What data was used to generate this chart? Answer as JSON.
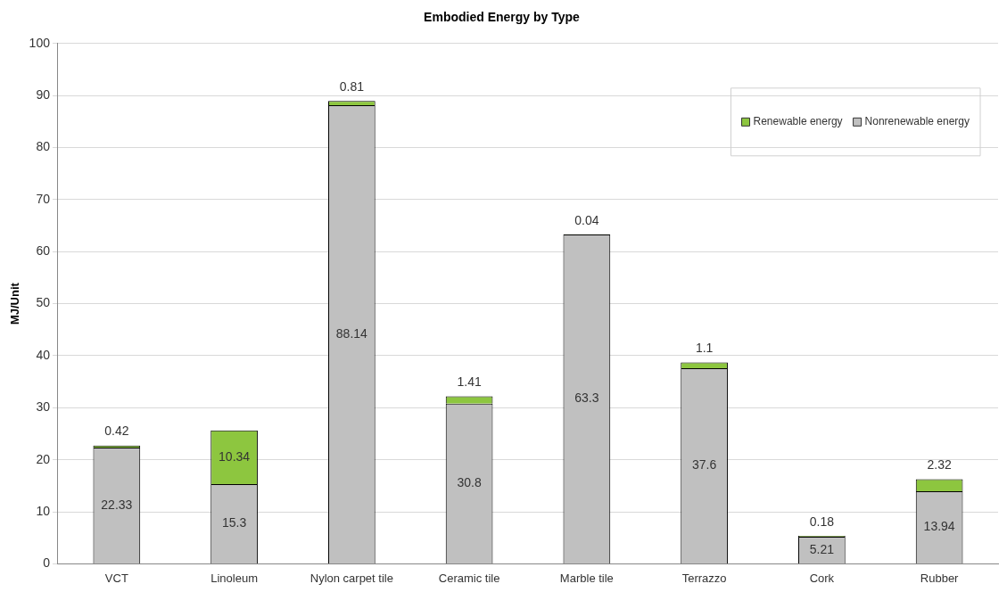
{
  "chart_data": {
    "type": "bar",
    "title": "Embodied Energy by Type",
    "ylabel": "MJ/Unit",
    "stacked": true,
    "categories": [
      "VCT",
      "Linoleum",
      "Nylon carpet tile",
      "Ceramic tile",
      "Marble tile",
      "Terrazzo",
      "Cork",
      "Rubber"
    ],
    "series": [
      {
        "name": "Nonrenewable energy",
        "color": "#c0c0c0",
        "values": [
          22.33,
          15.3,
          88.14,
          30.8,
          63.3,
          37.6,
          5.21,
          13.94
        ]
      },
      {
        "name": "Renewable energy",
        "color": "#8dc63f",
        "values": [
          0.42,
          10.34,
          0.81,
          1.41,
          0.04,
          1.1,
          0.18,
          2.32
        ]
      }
    ],
    "ylim": [
      0,
      100
    ],
    "yticks": [
      0,
      10,
      20,
      30,
      40,
      50,
      60,
      70,
      80,
      90,
      100
    ],
    "grid": "y",
    "legend": "top right",
    "data_labels": true
  }
}
